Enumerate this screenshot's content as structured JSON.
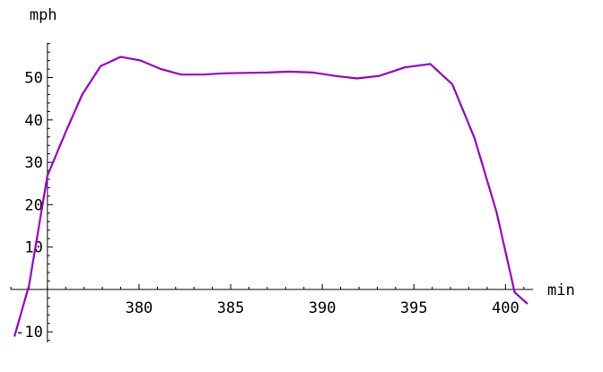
{
  "chart_data": {
    "type": "line",
    "title": "",
    "xlabel": "min",
    "ylabel": "mph",
    "xlim": [
      373.0,
      401.5
    ],
    "ylim": [
      -12.5,
      59.0
    ],
    "x_origin": 375.0,
    "y_origin": 0,
    "x_ticks": [
      380,
      385,
      390,
      395,
      400
    ],
    "x_tick_labels": [
      "380",
      "385",
      "390",
      "395",
      "400"
    ],
    "y_ticks": [
      -10,
      10,
      20,
      30,
      40,
      50
    ],
    "y_tick_labels": [
      "-10",
      "10",
      "20",
      "30",
      "40",
      "50"
    ],
    "x_minor_step": 1,
    "y_minor_step": 2,
    "grid": false,
    "series": [
      {
        "color": "#9900cc",
        "x": [
          373.2,
          374.0,
          375.0,
          376.0,
          376.9,
          377.9,
          379.0,
          380.1,
          381.2,
          382.3,
          383.5,
          384.6,
          385.8,
          387.0,
          388.2,
          389.5,
          390.7,
          391.9,
          393.1,
          394.5,
          395.9,
          397.1,
          398.3,
          399.5,
          400.5,
          401.2
        ],
        "y": [
          -11.1,
          1.0,
          26.8,
          37.2,
          46.0,
          52.7,
          54.9,
          54.0,
          52.0,
          50.7,
          50.7,
          51.0,
          51.1,
          51.2,
          51.4,
          51.2,
          50.4,
          49.8,
          50.4,
          52.4,
          53.2,
          48.4,
          35.8,
          18.4,
          -0.7,
          -3.4
        ]
      }
    ]
  }
}
